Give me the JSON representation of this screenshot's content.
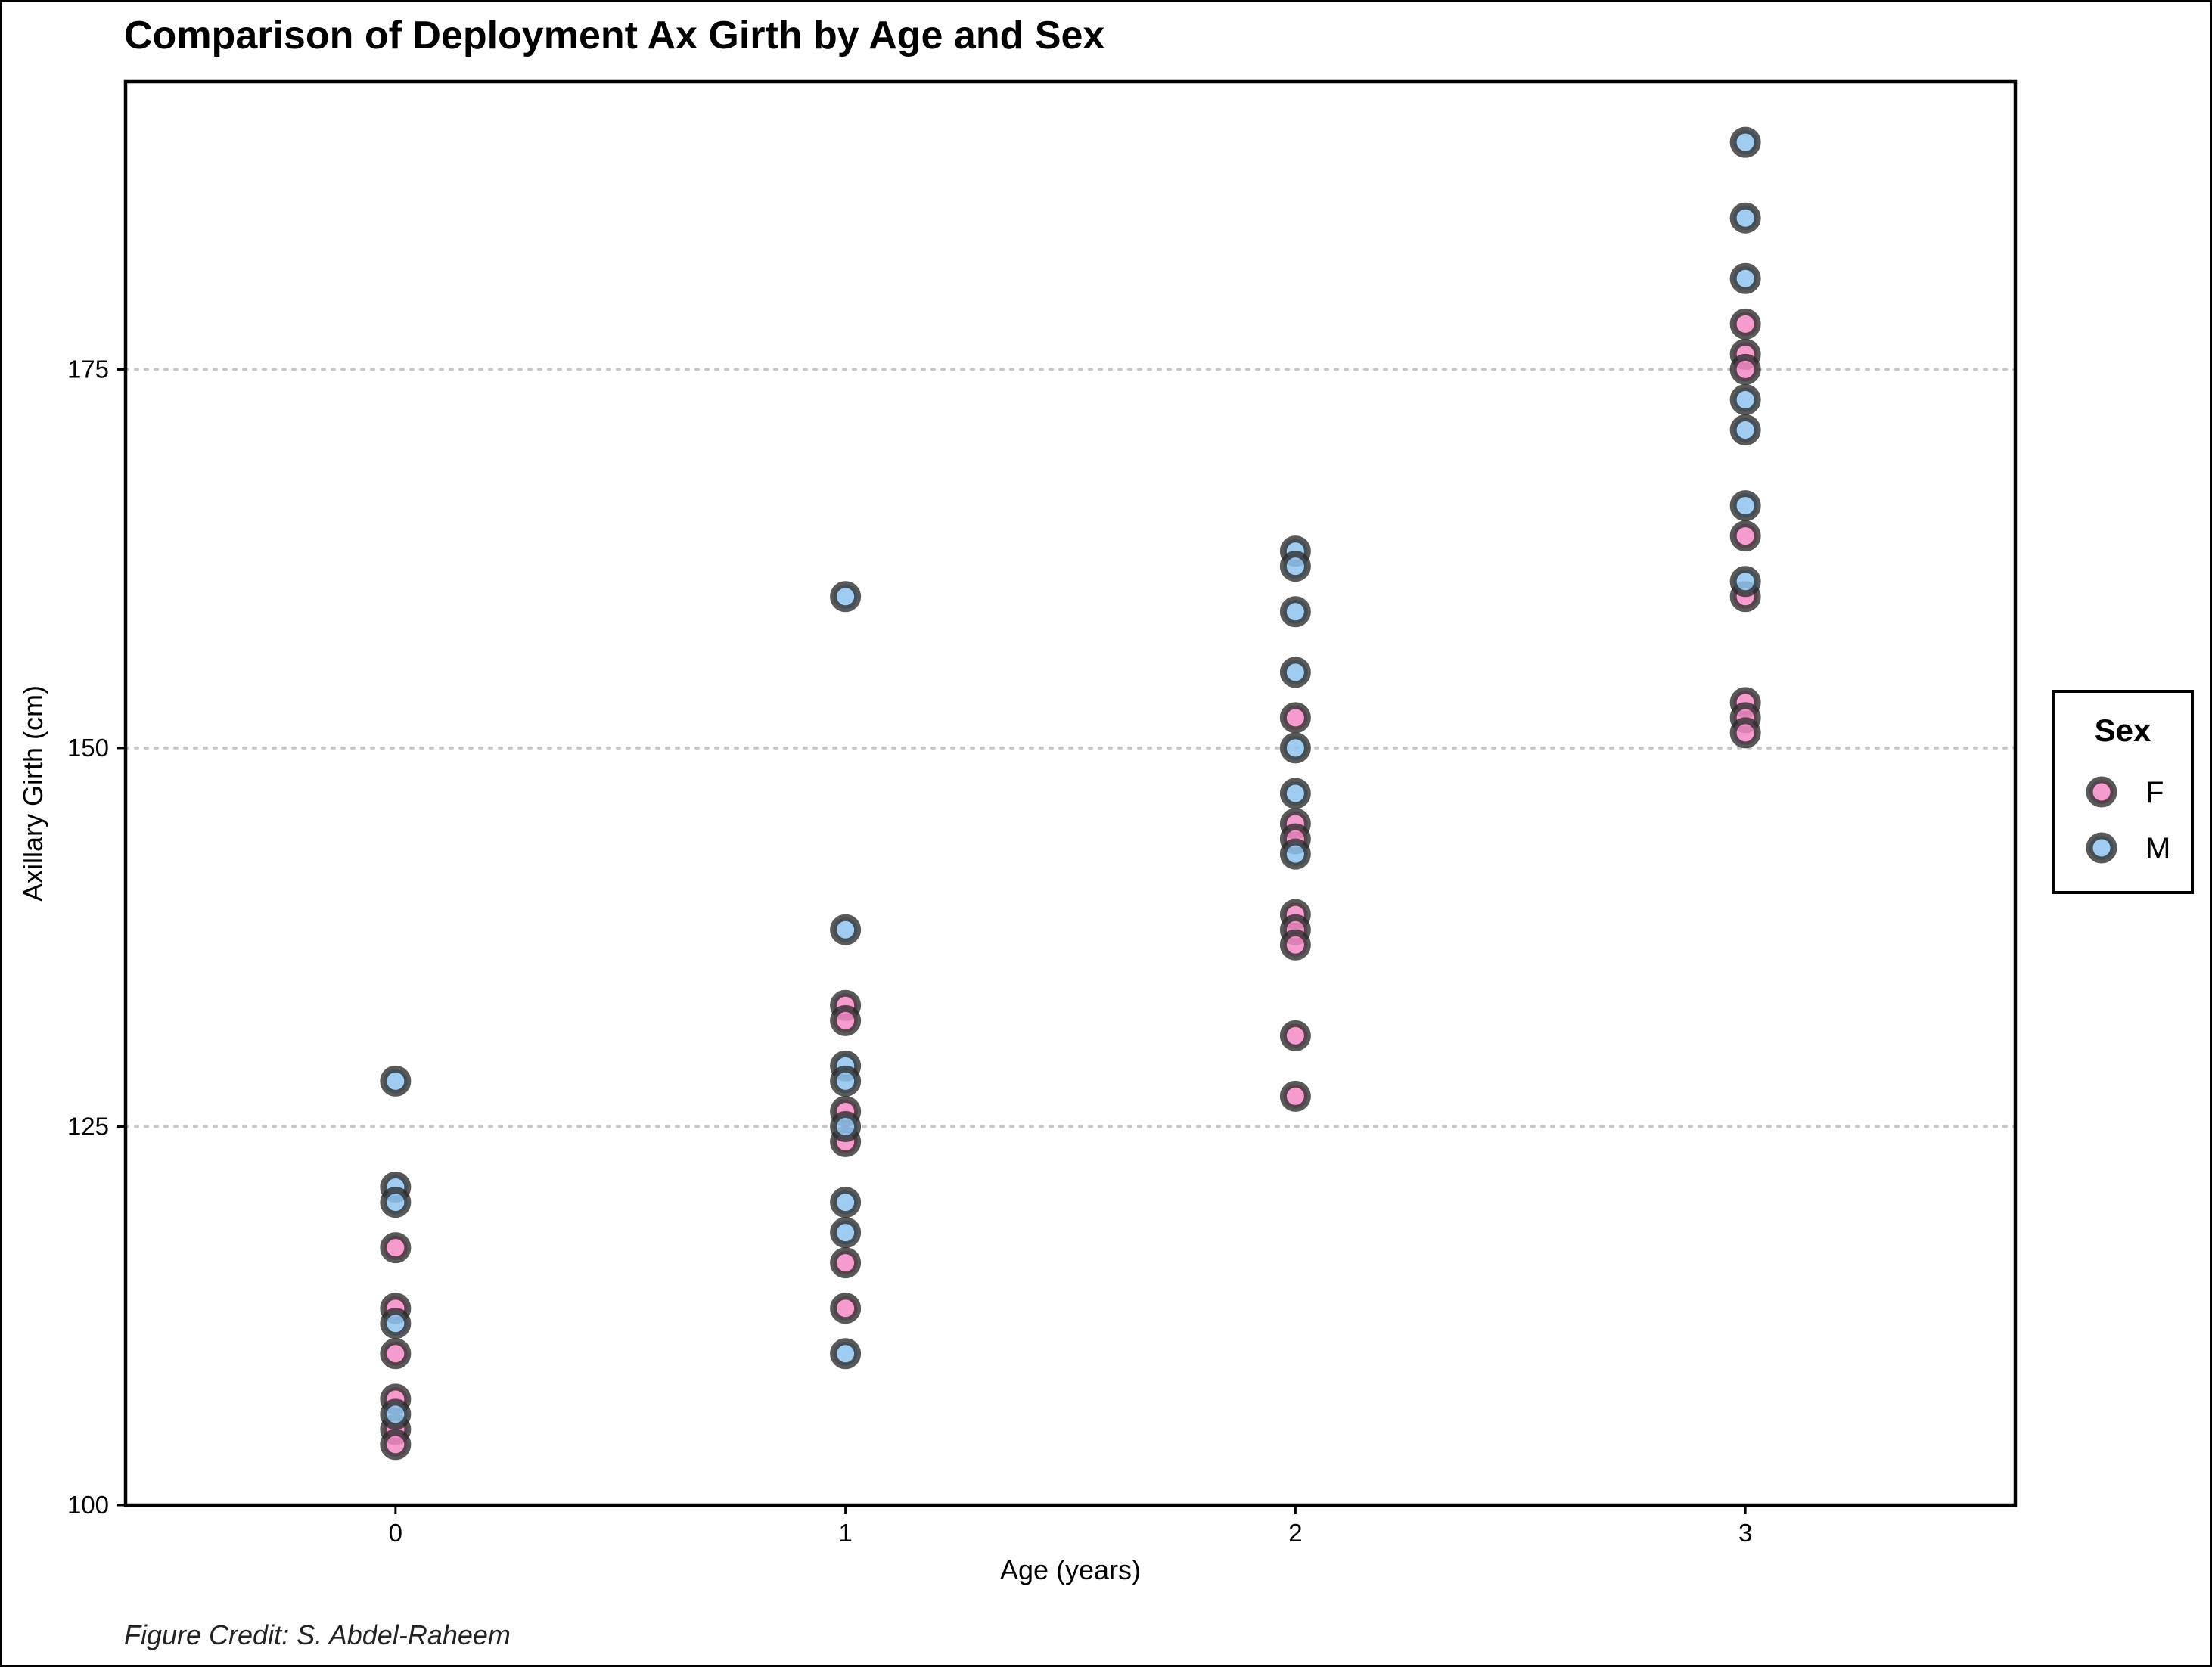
{
  "chart_data": {
    "type": "scatter",
    "title": "Comparison of Deployment Ax Girth by Age and Sex",
    "xlabel": "Age (years)",
    "ylabel": "Axillary Girth (cm)",
    "caption": "Figure Credit: S. Abdel-Raheem",
    "xlim": [
      -0.6,
      3.6
    ],
    "ylim": [
      100,
      194
    ],
    "xticks": [
      0,
      1,
      2,
      3
    ],
    "yticks": [
      100,
      125,
      150,
      175
    ],
    "grid": {
      "horizontal": true,
      "vertical": false,
      "style": "dotted"
    },
    "legend": {
      "title": "Sex",
      "position": "right"
    },
    "series": [
      {
        "name": "F",
        "color": "#f58ac6",
        "edge_color": "#2a2a2a",
        "points": [
          [
            0,
            117
          ],
          [
            0,
            113
          ],
          [
            0,
            110
          ],
          [
            0,
            107
          ],
          [
            0,
            105
          ],
          [
            0,
            104
          ],
          [
            1,
            133
          ],
          [
            1,
            132
          ],
          [
            1,
            126
          ],
          [
            1,
            124
          ],
          [
            1,
            116
          ],
          [
            1,
            113
          ],
          [
            2,
            152
          ],
          [
            2,
            145
          ],
          [
            2,
            144
          ],
          [
            2,
            139
          ],
          [
            2,
            138
          ],
          [
            2,
            137
          ],
          [
            2,
            131
          ],
          [
            2,
            127
          ],
          [
            3,
            178
          ],
          [
            3,
            176
          ],
          [
            3,
            175
          ],
          [
            3,
            164
          ],
          [
            3,
            160
          ],
          [
            3,
            153
          ],
          [
            3,
            152
          ],
          [
            3,
            151
          ]
        ]
      },
      {
        "name": "M",
        "color": "#8fc3f0",
        "edge_color": "#2a2a2a",
        "points": [
          [
            0,
            128
          ],
          [
            0,
            121
          ],
          [
            0,
            120
          ],
          [
            0,
            112
          ],
          [
            0,
            106
          ],
          [
            1,
            160
          ],
          [
            1,
            138
          ],
          [
            1,
            129
          ],
          [
            1,
            128
          ],
          [
            1,
            125
          ],
          [
            1,
            120
          ],
          [
            1,
            118
          ],
          [
            1,
            110
          ],
          [
            2,
            163
          ],
          [
            2,
            162
          ],
          [
            2,
            159
          ],
          [
            2,
            155
          ],
          [
            2,
            150
          ],
          [
            2,
            147
          ],
          [
            2,
            143
          ],
          [
            3,
            190
          ],
          [
            3,
            185
          ],
          [
            3,
            181
          ],
          [
            3,
            173
          ],
          [
            3,
            171
          ],
          [
            3,
            166
          ],
          [
            3,
            161
          ]
        ]
      }
    ]
  }
}
